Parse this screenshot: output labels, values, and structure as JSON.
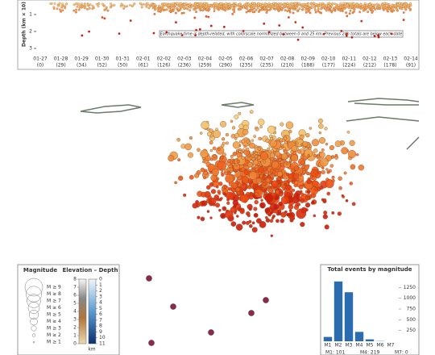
{
  "timeline": {
    "y_label": "Depth (km × 10)",
    "yticks": [
      1,
      2,
      3
    ],
    "dates": [
      "01-27",
      "01-28",
      "01-29",
      "01-30",
      "01-31",
      "02-01",
      "02-02",
      "02-03",
      "02-04",
      "02-05",
      "02-06",
      "02-07",
      "02-08",
      "02-09",
      "02-10",
      "02-11",
      "02-12",
      "02-13",
      "02-14"
    ],
    "counts": [
      "(0)",
      "(29)",
      "(34)",
      "(52)",
      "(50)",
      "(61)",
      "(126)",
      "(236)",
      "(259)",
      "(290)",
      "(235)",
      "(235)",
      "(210)",
      "(188)",
      "(177)",
      "(224)",
      "(212)",
      "(178)",
      "(91)"
    ],
    "note": "Earthquake time is depth-related, with colorscale normalized between 0 and 25 km. Previous 24h totals are below each date"
  },
  "legend": {
    "magnitude_title": "Magnitude",
    "magnitudes": [
      "M ≥ 9",
      "M ≥ 8",
      "M ≥ 7",
      "M ≥ 6",
      "M ≥ 5",
      "M ≥ 4",
      "M ≥ 3",
      "M ≥ 2",
      "M ≥ 1"
    ],
    "colorbar_title": "Elevation – Depth",
    "elevation_ticks": [
      8,
      7,
      6,
      5,
      4,
      3,
      2,
      1,
      0
    ],
    "depth_ticks": [
      0,
      1,
      2,
      3,
      4,
      5,
      6,
      7,
      8,
      9,
      10,
      11
    ],
    "unit": "km"
  },
  "chart_data": {
    "type": "bar",
    "title": "Total events by magnitude",
    "categories": [
      "M1",
      "M2",
      "M3",
      "M4",
      "M5",
      "M6",
      "M7"
    ],
    "values": [
      101,
      1390,
      1140,
      219,
      45,
      5,
      0
    ],
    "color": "#2b6cb0",
    "ylim": [
      0,
      1500
    ],
    "yticks": [
      250,
      500,
      750,
      1000,
      1250
    ]
  },
  "footer": [
    "M1: 101",
    "M4: 219",
    "M7: 0"
  ]
}
